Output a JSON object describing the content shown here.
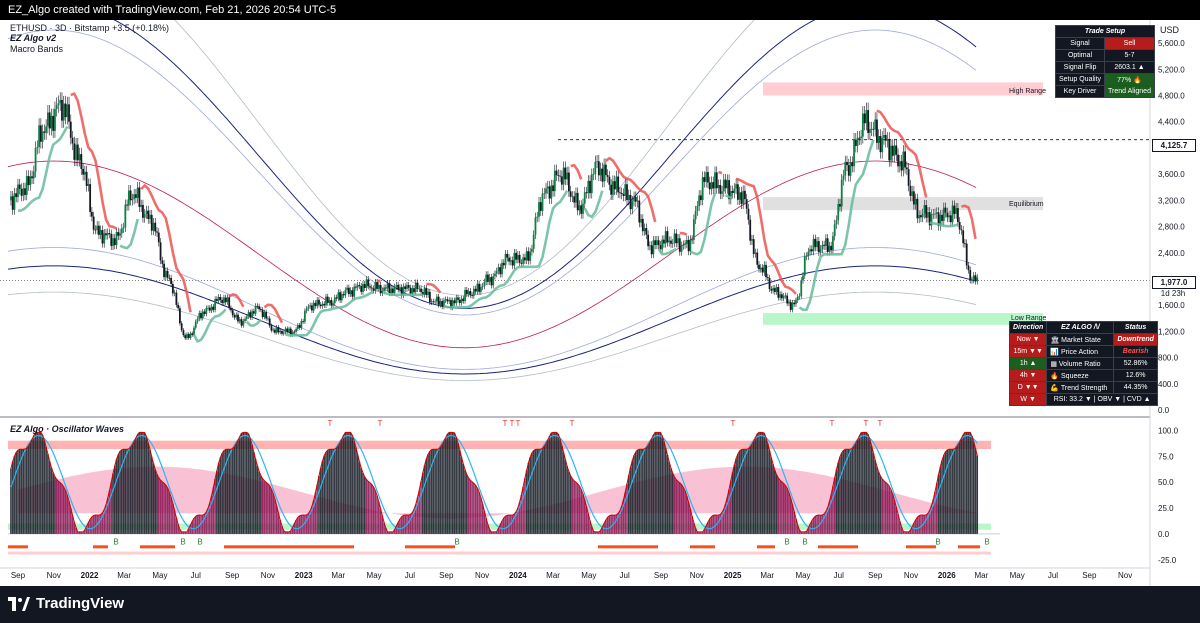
{
  "header": {
    "text": "EZ_Algo created with TradingView.com, Feb 21, 2026 20:54 UTC-5"
  },
  "legend": {
    "symbol_line": "ETHUSD · 3D · Bitstamp  +3.5 (+0.18%)",
    "indicator": "EZ Algo v2",
    "bands": "Macro Bands",
    "oscillator": "EZ Algo · Oscillator Waves"
  },
  "axis": {
    "currency": "USD"
  },
  "zones": {
    "high": "High Range",
    "mid": "Equilibrium",
    "low": "Low Range"
  },
  "price_badges": {
    "line": "4,125.7",
    "current": "1,977.0",
    "countdown": "1d 23h"
  },
  "trade_setup": {
    "title": "Trade Setup",
    "rows": [
      {
        "label": "Signal",
        "value": "Sell"
      },
      {
        "label": "Optimal",
        "value": "5-7"
      },
      {
        "label": "Signal Flip",
        "value": "2603.1 ▲"
      },
      {
        "label": "Setup Quality",
        "value": "77% 🔥"
      },
      {
        "label": "Key Driver",
        "value": "Trend Aligned"
      }
    ]
  },
  "status_panel": {
    "headers": [
      "Direction",
      "EZ ALGO /\\/",
      "Status"
    ],
    "rows": [
      {
        "tf": "Now ▼",
        "metric": "🏛 Market State",
        "status": "Downtrend"
      },
      {
        "tf": "15m ▼▼",
        "metric": "📊 Price Action",
        "status": "Bearish"
      },
      {
        "tf": "1h ▲",
        "metric": "▦ Volume Ratio",
        "status": "52.86%"
      },
      {
        "tf": "4h ▼",
        "metric": "🔥 Squeeze",
        "status": "12.6%"
      },
      {
        "tf": "D ▼▼",
        "metric": "💪 Trend Strength",
        "status": "44.35%"
      },
      {
        "tf": "W ▼",
        "metric": "RSI: 33.2 ▼ | OBV ▼ | CVD ▲",
        "status": ""
      }
    ]
  },
  "footer": {
    "brand": "TradingView"
  },
  "colors": {
    "bull": "#26a69a",
    "bear": "#ef5350",
    "band": "#1a237e",
    "mid": "#c2185b",
    "green_zone": "#b9f6ca",
    "red_zone": "#ffcdd2"
  },
  "chart_data": [
    {
      "type": "candlestick",
      "title": "ETHUSD · 3D · Bitstamp",
      "x_ticks": [
        "Sep",
        "Nov",
        "2022",
        "Mar",
        "May",
        "Jul",
        "Sep",
        "Nov",
        "2023",
        "Mar",
        "May",
        "Jul",
        "Sep",
        "Nov",
        "2024",
        "Mar",
        "May",
        "Jul",
        "Sep",
        "Nov",
        "2025",
        "Mar",
        "May",
        "Jul",
        "Sep",
        "Nov",
        "2026",
        "Mar",
        "May",
        "Jul",
        "Sep",
        "Nov"
      ],
      "y_ticks": [
        0,
        400,
        800,
        1200,
        1600,
        2000,
        2400,
        2800,
        3200,
        3600,
        4000,
        4400,
        4800,
        5200,
        5600
      ],
      "ylim": [
        0,
        5800
      ],
      "approx_closes": [
        [
          "2021-08",
          3200
        ],
        [
          "2021-09",
          3400
        ],
        [
          "2021-10",
          4300
        ],
        [
          "2021-11",
          4650
        ],
        [
          "2021-12",
          3800
        ],
        [
          "2022-01",
          2700
        ],
        [
          "2022-02",
          2600
        ],
        [
          "2022-03",
          3300
        ],
        [
          "2022-04",
          2900
        ],
        [
          "2022-05",
          2000
        ],
        [
          "2022-06",
          1100
        ],
        [
          "2022-07",
          1500
        ],
        [
          "2022-08",
          1700
        ],
        [
          "2022-09",
          1350
        ],
        [
          "2022-10",
          1550
        ],
        [
          "2022-11",
          1200
        ],
        [
          "2022-12",
          1200
        ],
        [
          "2023-01",
          1600
        ],
        [
          "2023-02",
          1650
        ],
        [
          "2023-03",
          1800
        ],
        [
          "2023-04",
          1900
        ],
        [
          "2023-05",
          1850
        ],
        [
          "2023-06",
          1850
        ],
        [
          "2023-07",
          1850
        ],
        [
          "2023-08",
          1650
        ],
        [
          "2023-09",
          1650
        ],
        [
          "2023-10",
          1800
        ],
        [
          "2023-11",
          2000
        ],
        [
          "2023-12",
          2300
        ],
        [
          "2024-01",
          2300
        ],
        [
          "2024-02",
          3300
        ],
        [
          "2024-03",
          3600
        ],
        [
          "2024-04",
          3100
        ],
        [
          "2024-05",
          3700
        ],
        [
          "2024-06",
          3400
        ],
        [
          "2024-07",
          3200
        ],
        [
          "2024-08",
          2500
        ],
        [
          "2024-09",
          2600
        ],
        [
          "2024-10",
          2500
        ],
        [
          "2024-11",
          3500
        ],
        [
          "2024-12",
          3400
        ],
        [
          "2025-01",
          3300
        ],
        [
          "2025-02",
          2200
        ],
        [
          "2025-03",
          1800
        ],
        [
          "2025-04",
          1600
        ],
        [
          "2025-05",
          2500
        ],
        [
          "2025-06",
          2500
        ],
        [
          "2025-07",
          3700
        ],
        [
          "2025-08",
          4400
        ],
        [
          "2025-09",
          4100
        ],
        [
          "2025-10",
          3800
        ],
        [
          "2025-11",
          3000
        ],
        [
          "2025-12",
          2950
        ],
        [
          "2026-01",
          3000
        ],
        [
          "2026-02",
          1977
        ]
      ],
      "annotations": {
        "horizontal_line": 4125.7,
        "current_price": 1977.0
      }
    },
    {
      "type": "line",
      "title": "EZ Algo · Oscillator Waves",
      "y_ticks": [
        100.0,
        75.0,
        50.0,
        25.0,
        0.0,
        -25.0
      ],
      "ylim": [
        -30,
        110
      ],
      "markers": {
        "T": 9,
        "B": 9
      }
    }
  ]
}
